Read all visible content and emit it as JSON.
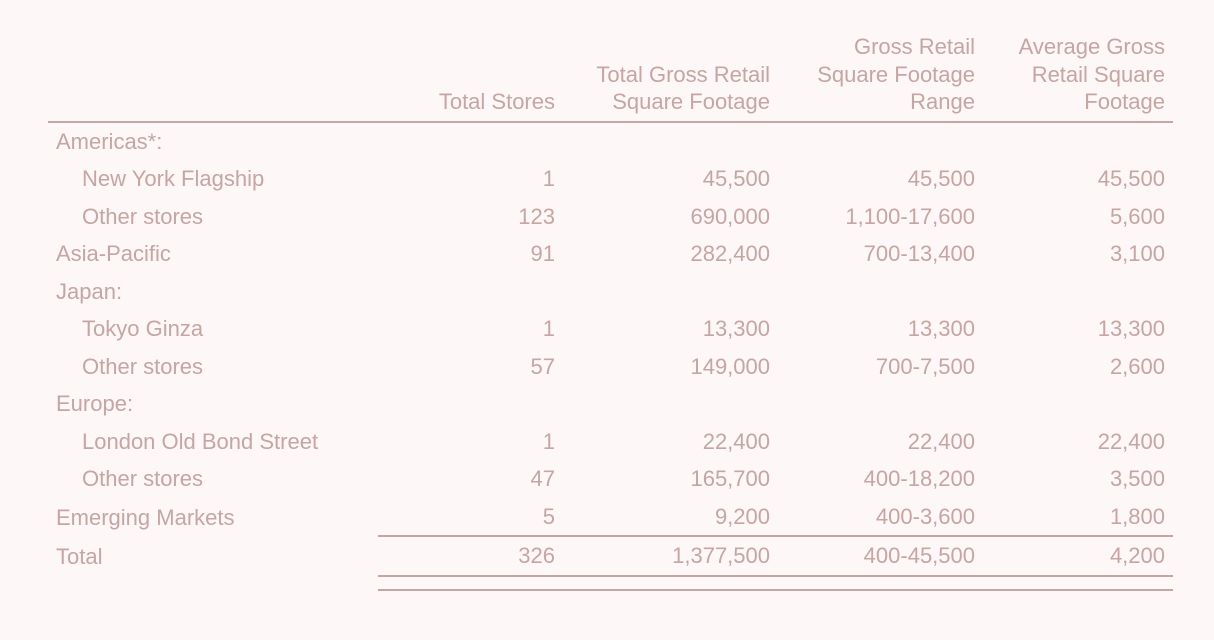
{
  "table": {
    "columns": [
      "",
      "Total Stores",
      "Total Gross Retail\nSquare Footage",
      "Gross Retail\nSquare Footage\nRange",
      "Average Gross\nRetail Square\nFootage"
    ],
    "rows": [
      {
        "type": "group",
        "label": "Americas*:"
      },
      {
        "type": "indent",
        "label": "New York Flagship",
        "cells": [
          "1",
          "45,500",
          "45,500",
          "45,500"
        ]
      },
      {
        "type": "indent",
        "label": "Other stores",
        "cells": [
          "123",
          "690,000",
          "1,100-17,600",
          "5,600"
        ]
      },
      {
        "type": "row",
        "label": "Asia-Pacific",
        "cells": [
          "91",
          "282,400",
          "700-13,400",
          "3,100"
        ]
      },
      {
        "type": "group",
        "label": "Japan:"
      },
      {
        "type": "indent",
        "label": "Tokyo Ginza",
        "cells": [
          "1",
          "13,300",
          "13,300",
          "13,300"
        ]
      },
      {
        "type": "indent",
        "label": "Other stores",
        "cells": [
          "57",
          "149,000",
          "700-7,500",
          "2,600"
        ]
      },
      {
        "type": "group",
        "label": "Europe:"
      },
      {
        "type": "indent",
        "label": "London Old Bond Street",
        "cells": [
          "1",
          "22,400",
          "22,400",
          "22,400"
        ]
      },
      {
        "type": "indent",
        "label": "Other stores",
        "cells": [
          "47",
          "165,700",
          "400-18,200",
          "3,500"
        ]
      },
      {
        "type": "row",
        "label": "Emerging Markets",
        "cells": [
          "5",
          "9,200",
          "400-3,600",
          "1,800"
        ]
      },
      {
        "type": "total",
        "label": "Total",
        "cells": [
          "326",
          "1,377,500",
          "400-45,500",
          "4,200"
        ]
      }
    ],
    "colors": {
      "text": "#c6a5a2",
      "rule": "#c6a5a2",
      "background": "#fdf7f7"
    },
    "font_size_pt": 16
  }
}
